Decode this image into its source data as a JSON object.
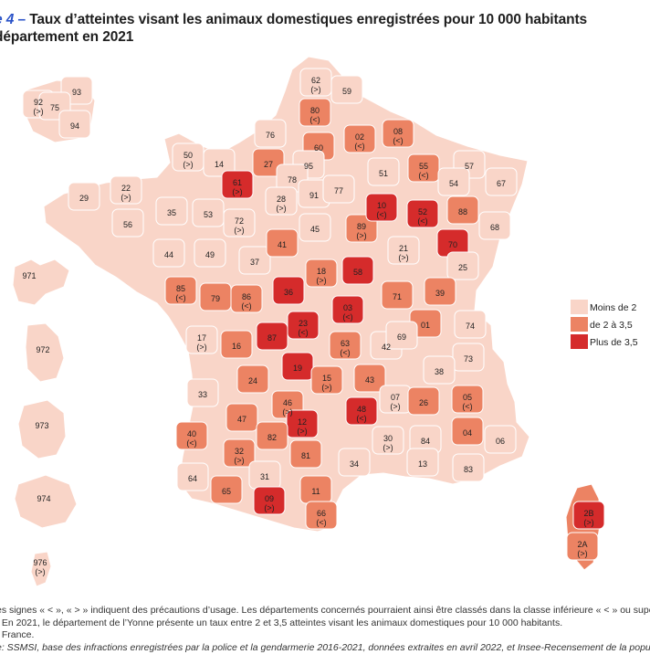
{
  "title": {
    "figure_prefix": "e 4",
    "dash": " – ",
    "line1": "Taux d’atteintes visant les animaux domestiques enregistrées pour 10 000 habitants",
    "line2": "département en 2021"
  },
  "legend": {
    "items": [
      {
        "label": "Moins de 2",
        "color": "#f9d5c8"
      },
      {
        "label": "de 2 à 3,5",
        "color": "#ec8363"
      },
      {
        "label": "Plus de 3,5",
        "color": "#d52b2b"
      }
    ]
  },
  "colors": {
    "low": "#f9d5c8",
    "mid": "#ec8363",
    "high": "#d52b2b",
    "border": "#ffffff"
  },
  "departments": [
    {
      "code": "62",
      "cls": "low",
      "mark": "(>)"
    },
    {
      "code": "59",
      "cls": "low",
      "mark": ""
    },
    {
      "code": "80",
      "cls": "mid",
      "mark": "(<)"
    },
    {
      "code": "02",
      "cls": "mid",
      "mark": "(<)"
    },
    {
      "code": "08",
      "cls": "mid",
      "mark": "(<)"
    },
    {
      "code": "60",
      "cls": "mid",
      "mark": ""
    },
    {
      "code": "76",
      "cls": "low",
      "mark": ""
    },
    {
      "code": "27",
      "cls": "mid",
      "mark": ""
    },
    {
      "code": "50",
      "cls": "low",
      "mark": "(>)"
    },
    {
      "code": "14",
      "cls": "low",
      "mark": ""
    },
    {
      "code": "61",
      "cls": "high",
      "mark": "(>)"
    },
    {
      "code": "95",
      "cls": "low",
      "mark": ""
    },
    {
      "code": "78",
      "cls": "low",
      "mark": ""
    },
    {
      "code": "91",
      "cls": "low",
      "mark": ""
    },
    {
      "code": "77",
      "cls": "low",
      "mark": ""
    },
    {
      "code": "28",
      "cls": "low",
      "mark": "(>)"
    },
    {
      "code": "51",
      "cls": "low",
      "mark": ""
    },
    {
      "code": "55",
      "cls": "mid",
      "mark": "(<)"
    },
    {
      "code": "57",
      "cls": "low",
      "mark": ""
    },
    {
      "code": "54",
      "cls": "low",
      "mark": ""
    },
    {
      "code": "67",
      "cls": "low",
      "mark": ""
    },
    {
      "code": "29",
      "cls": "low",
      "mark": ""
    },
    {
      "code": "22",
      "cls": "low",
      "mark": "(>)"
    },
    {
      "code": "35",
      "cls": "low",
      "mark": ""
    },
    {
      "code": "53",
      "cls": "low",
      "mark": ""
    },
    {
      "code": "72",
      "cls": "low",
      "mark": "(>)"
    },
    {
      "code": "56",
      "cls": "low",
      "mark": ""
    },
    {
      "code": "44",
      "cls": "low",
      "mark": ""
    },
    {
      "code": "49",
      "cls": "low",
      "mark": ""
    },
    {
      "code": "37",
      "cls": "low",
      "mark": ""
    },
    {
      "code": "41",
      "cls": "mid",
      "mark": ""
    },
    {
      "code": "45",
      "cls": "low",
      "mark": ""
    },
    {
      "code": "89",
      "cls": "mid",
      "mark": "(>)"
    },
    {
      "code": "10",
      "cls": "high",
      "mark": "(<)"
    },
    {
      "code": "52",
      "cls": "high",
      "mark": "(<)"
    },
    {
      "code": "88",
      "cls": "mid",
      "mark": ""
    },
    {
      "code": "68",
      "cls": "low",
      "mark": ""
    },
    {
      "code": "70",
      "cls": "high",
      "mark": ""
    },
    {
      "code": "21",
      "cls": "low",
      "mark": "(>)"
    },
    {
      "code": "25",
      "cls": "low",
      "mark": ""
    },
    {
      "code": "58",
      "cls": "high",
      "mark": ""
    },
    {
      "code": "18",
      "cls": "mid",
      "mark": "(>)"
    },
    {
      "code": "36",
      "cls": "high",
      "mark": ""
    },
    {
      "code": "86",
      "cls": "mid",
      "mark": "(<)"
    },
    {
      "code": "79",
      "cls": "mid",
      "mark": ""
    },
    {
      "code": "85",
      "cls": "mid",
      "mark": "(<)"
    },
    {
      "code": "71",
      "cls": "mid",
      "mark": ""
    },
    {
      "code": "39",
      "cls": "mid",
      "mark": ""
    },
    {
      "code": "03",
      "cls": "high",
      "mark": "(<)"
    },
    {
      "code": "01",
      "cls": "mid",
      "mark": ""
    },
    {
      "code": "74",
      "cls": "low",
      "mark": ""
    },
    {
      "code": "17",
      "cls": "low",
      "mark": "(>)"
    },
    {
      "code": "16",
      "cls": "mid",
      "mark": ""
    },
    {
      "code": "87",
      "cls": "high",
      "mark": ""
    },
    {
      "code": "23",
      "cls": "high",
      "mark": "(<)"
    },
    {
      "code": "63",
      "cls": "mid",
      "mark": "(<)"
    },
    {
      "code": "42",
      "cls": "low",
      "mark": ""
    },
    {
      "code": "69",
      "cls": "low",
      "mark": ""
    },
    {
      "code": "73",
      "cls": "low",
      "mark": ""
    },
    {
      "code": "38",
      "cls": "low",
      "mark": ""
    },
    {
      "code": "19",
      "cls": "high",
      "mark": ""
    },
    {
      "code": "24",
      "cls": "mid",
      "mark": ""
    },
    {
      "code": "33",
      "cls": "low",
      "mark": ""
    },
    {
      "code": "15",
      "cls": "mid",
      "mark": "(>)"
    },
    {
      "code": "43",
      "cls": "mid",
      "mark": ""
    },
    {
      "code": "07",
      "cls": "low",
      "mark": "(>)"
    },
    {
      "code": "26",
      "cls": "mid",
      "mark": ""
    },
    {
      "code": "05",
      "cls": "mid",
      "mark": "(<)"
    },
    {
      "code": "46",
      "cls": "mid",
      "mark": "(>)"
    },
    {
      "code": "47",
      "cls": "mid",
      "mark": ""
    },
    {
      "code": "12",
      "cls": "high",
      "mark": "(>)"
    },
    {
      "code": "48",
      "cls": "high",
      "mark": "(<)"
    },
    {
      "code": "40",
      "cls": "mid",
      "mark": "(<)"
    },
    {
      "code": "82",
      "cls": "mid",
      "mark": ""
    },
    {
      "code": "81",
      "cls": "mid",
      "mark": ""
    },
    {
      "code": "30",
      "cls": "low",
      "mark": "(>)"
    },
    {
      "code": "84",
      "cls": "low",
      "mark": ""
    },
    {
      "code": "04",
      "cls": "mid",
      "mark": ""
    },
    {
      "code": "06",
      "cls": "low",
      "mark": ""
    },
    {
      "code": "32",
      "cls": "mid",
      "mark": "(>)"
    },
    {
      "code": "64",
      "cls": "low",
      "mark": ""
    },
    {
      "code": "31",
      "cls": "low",
      "mark": ""
    },
    {
      "code": "34",
      "cls": "low",
      "mark": ""
    },
    {
      "code": "13",
      "cls": "low",
      "mark": ""
    },
    {
      "code": "83",
      "cls": "low",
      "mark": ""
    },
    {
      "code": "65",
      "cls": "mid",
      "mark": ""
    },
    {
      "code": "09",
      "cls": "high",
      "mark": "(>)"
    },
    {
      "code": "11",
      "cls": "mid",
      "mark": ""
    },
    {
      "code": "66",
      "cls": "mid",
      "mark": "(<)"
    },
    {
      "code": "2B",
      "cls": "high",
      "mark": "(>)"
    },
    {
      "code": "2A",
      "cls": "mid",
      "mark": "(>)"
    },
    {
      "code": "93",
      "cls": "low",
      "mark": ""
    },
    {
      "code": "92",
      "cls": "low",
      "mark": "(>)"
    },
    {
      "code": "75",
      "cls": "low",
      "mark": ""
    },
    {
      "code": "94",
      "cls": "low",
      "mark": ""
    },
    {
      "code": "971",
      "cls": "low",
      "mark": ""
    },
    {
      "code": "972",
      "cls": "low",
      "mark": ""
    },
    {
      "code": "973",
      "cls": "low",
      "mark": ""
    },
    {
      "code": "974",
      "cls": "low",
      "mark": ""
    },
    {
      "code": "976",
      "cls": "low",
      "mark": "(>)"
    }
  ],
  "notes": [
    {
      "text": "es signes « < », « > » indiquent des précautions d’usage. Les départements concernés pourraient ainsi être classés dans la classe inférieure « < » ou supérieure",
      "italic": false
    },
    {
      "text": ": En 2021, le département de l’Yonne présente un taux entre 2 et 3,5 atteintes visant les animaux domestiques pour 10 000 habitants.",
      "italic": false
    },
    {
      "text": ": France.",
      "italic": false
    },
    {
      "text": "e: SSMSI, base des infractions enregistrées par la police et la gendarmerie 2016-2021, données extraites en avril 2022, et Insee-Recensement de la populatio",
      "italic": true
    }
  ]
}
